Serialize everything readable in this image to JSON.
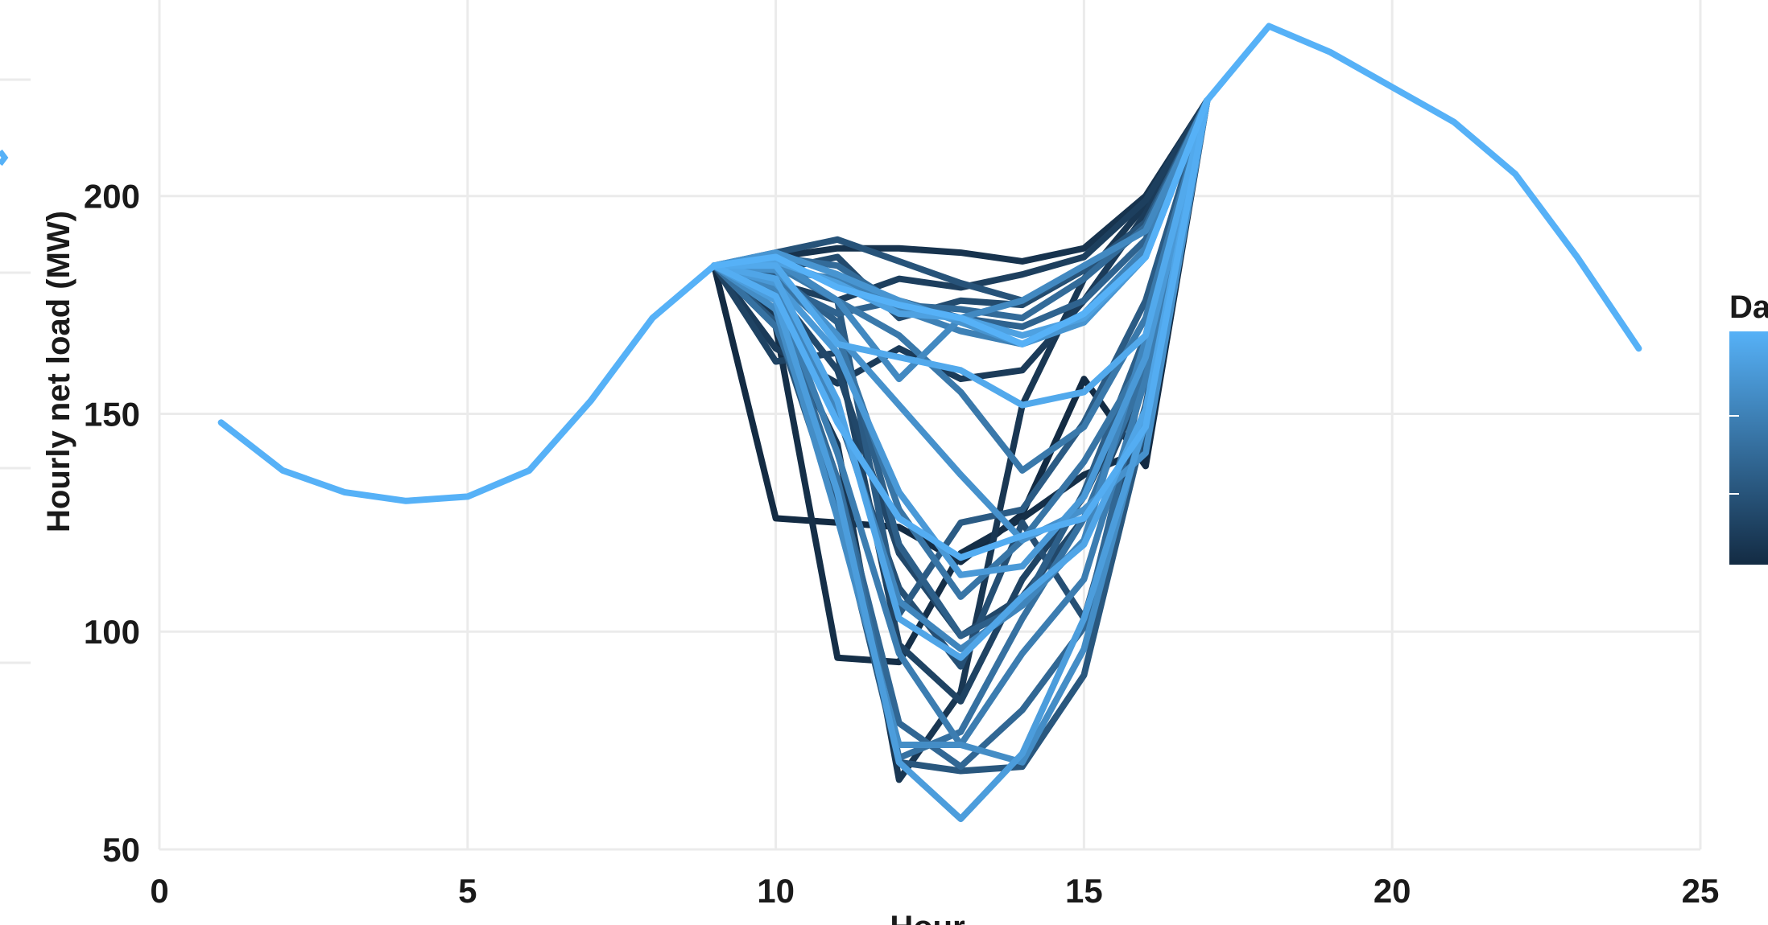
{
  "chart_data": {
    "type": "line",
    "xlabel": "Hour",
    "ylabel": "Hourly net load (MW)",
    "legend_title": "Da",
    "legend_placement": "right",
    "grid": true,
    "xlim": [
      0,
      25
    ],
    "ylim": [
      50,
      245
    ],
    "x_ticks": [
      "0",
      "5",
      "10",
      "15",
      "20",
      "25"
    ],
    "y_ticks": [
      "50",
      "100",
      "150",
      "200"
    ],
    "colors": {
      "light": "#56B1F7",
      "dark": "#132B43",
      "grid": "#EBEBEB"
    },
    "baseline": {
      "hours": [
        1,
        2,
        3,
        4,
        5,
        6,
        7,
        8,
        9
      ],
      "values": [
        148,
        137,
        132,
        130,
        131,
        137,
        153,
        172,
        184
      ]
    },
    "evening": {
      "hours": [
        17,
        18,
        19,
        20,
        21,
        22,
        23,
        24
      ],
      "values": [
        222,
        239,
        233,
        225,
        217,
        205,
        186,
        165
      ]
    },
    "day_profiles": {
      "hours": [
        9,
        10,
        11,
        12,
        13,
        14,
        15,
        16,
        17
      ],
      "series": [
        {
          "shade": 0.0,
          "values": [
            184,
            126,
            125,
            124,
            116,
            127,
            158,
            138,
            222
          ]
        },
        {
          "shade": 0.03,
          "values": [
            184,
            170,
            94,
            93,
            118,
            126,
            136,
            142,
            222
          ]
        },
        {
          "shade": 0.06,
          "values": [
            184,
            186,
            188,
            188,
            187,
            185,
            188,
            200,
            222
          ]
        },
        {
          "shade": 0.09,
          "values": [
            184,
            172,
            143,
            66,
            86,
            152,
            181,
            198,
            222
          ]
        },
        {
          "shade": 0.12,
          "values": [
            184,
            165,
            157,
            165,
            158,
            160,
            176,
            196,
            222
          ]
        },
        {
          "shade": 0.15,
          "values": [
            184,
            180,
            176,
            181,
            179,
            182,
            186,
            199,
            222
          ]
        },
        {
          "shade": 0.18,
          "values": [
            184,
            162,
            164,
            97,
            84,
            112,
            131,
            160,
            222
          ]
        },
        {
          "shade": 0.21,
          "values": [
            184,
            178,
            160,
            118,
            99,
            108,
            126,
            158,
            222
          ]
        },
        {
          "shade": 0.24,
          "values": [
            184,
            183,
            186,
            172,
            176,
            175,
            183,
            193,
            222
          ]
        },
        {
          "shade": 0.27,
          "values": [
            184,
            174,
            150,
            110,
            92,
            125,
            103,
            152,
            222
          ]
        },
        {
          "shade": 0.3,
          "values": [
            184,
            187,
            190,
            185,
            180,
            176,
            183,
            194,
            222
          ]
        },
        {
          "shade": 0.33,
          "values": [
            184,
            171,
            128,
            70,
            68,
            69,
            90,
            148,
            222
          ]
        },
        {
          "shade": 0.36,
          "values": [
            184,
            185,
            176,
            104,
            125,
            128,
            148,
            176,
            222
          ]
        },
        {
          "shade": 0.39,
          "values": [
            184,
            182,
            171,
            120,
            99,
            106,
            132,
            168,
            222
          ]
        },
        {
          "shade": 0.42,
          "values": [
            184,
            180,
            173,
            176,
            172,
            170,
            176,
            190,
            222
          ]
        },
        {
          "shade": 0.45,
          "values": [
            184,
            176,
            135,
            79,
            69,
            82,
            101,
            160,
            222
          ]
        },
        {
          "shade": 0.48,
          "values": [
            184,
            186,
            184,
            175,
            174,
            172,
            181,
            193,
            222
          ]
        },
        {
          "shade": 0.52,
          "values": [
            184,
            170,
            135,
            71,
            77,
            103,
            126,
            160,
            222
          ]
        },
        {
          "shade": 0.55,
          "values": [
            184,
            181,
            168,
            128,
            108,
            121,
            139,
            163,
            222
          ]
        },
        {
          "shade": 0.58,
          "values": [
            184,
            184,
            176,
            168,
            155,
            137,
            147,
            172,
            222
          ]
        },
        {
          "shade": 0.61,
          "values": [
            184,
            178,
            141,
            95,
            74,
            95,
            112,
            158,
            222
          ]
        },
        {
          "shade": 0.64,
          "values": [
            184,
            183,
            181,
            174,
            169,
            166,
            173,
            188,
            222
          ]
        },
        {
          "shade": 0.67,
          "values": [
            184,
            179,
            151,
            107,
            96,
            106,
            121,
            167,
            222
          ]
        },
        {
          "shade": 0.7,
          "values": [
            184,
            185,
            176,
            158,
            172,
            176,
            184,
            192,
            222
          ]
        },
        {
          "shade": 0.73,
          "values": [
            184,
            174,
            126,
            74,
            74,
            70,
            96,
            150,
            222
          ]
        },
        {
          "shade": 0.76,
          "values": [
            184,
            183,
            168,
            152,
            136,
            121,
            128,
            141,
            222
          ]
        },
        {
          "shade": 0.79,
          "values": [
            184,
            187,
            182,
            176,
            171,
            166,
            171,
            186,
            222
          ]
        },
        {
          "shade": 0.82,
          "values": [
            184,
            180,
            164,
            132,
            113,
            115,
            131,
            163,
            222
          ]
        },
        {
          "shade": 0.85,
          "values": [
            184,
            176,
            132,
            70,
            57,
            72,
            103,
            148,
            222
          ]
        },
        {
          "shade": 0.88,
          "values": [
            184,
            185,
            180,
            173,
            172,
            168,
            172,
            186,
            222
          ]
        },
        {
          "shade": 0.91,
          "values": [
            184,
            181,
            153,
            103,
            94,
            108,
            120,
            151,
            222
          ]
        },
        {
          "shade": 0.94,
          "values": [
            184,
            184,
            166,
            163,
            160,
            152,
            155,
            168,
            222
          ]
        },
        {
          "shade": 0.97,
          "values": [
            184,
            177,
            148,
            126,
            117,
            122,
            126,
            147,
            222
          ]
        },
        {
          "shade": 1.0,
          "values": [
            184,
            186,
            179,
            175,
            172,
            166,
            173,
            186,
            222
          ]
        }
      ]
    }
  }
}
